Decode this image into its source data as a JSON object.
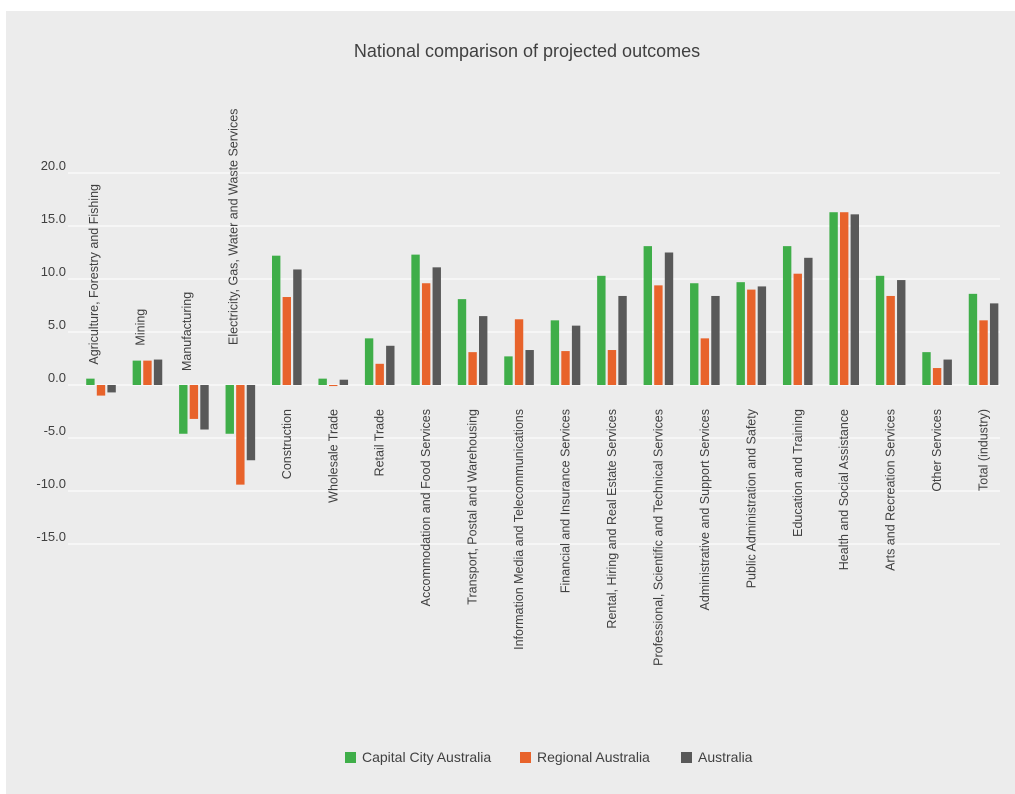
{
  "chart_data": {
    "type": "bar",
    "title": "National comparison of projected outcomes",
    "xlabel": "",
    "ylabel": "",
    "ylim": [
      -15,
      20
    ],
    "yticks": [
      "20.0",
      "15.0",
      "10.0",
      "5.0",
      "0.0",
      "-5.0",
      "-10.0",
      "-15.0"
    ],
    "grid": true,
    "legend_position": "bottom",
    "categories": [
      "Agriculture, Forestry and Fishing",
      "Mining",
      "Manufacturing",
      "Electricity, Gas, Water and Waste Services",
      "Construction",
      "Wholesale Trade",
      "Retail Trade",
      "Accommodation and Food Services",
      "Transport, Postal and Warehousing",
      "Information Media and Telecommunications",
      "Financial and Insurance Services",
      "Rental, Hiring and Real Estate Services",
      "Professional, Scientific and Technical Services",
      "Administrative and Support Services",
      "Public Administration and Safety",
      "Education and Training",
      "Health and Social Assistance",
      "Arts and Recreation Services",
      "Other Services",
      "Total (industry)"
    ],
    "series": [
      {
        "name": "Capital City Australia",
        "color": "#3fae49",
        "values": [
          0.6,
          2.3,
          -4.6,
          -4.6,
          12.2,
          0.6,
          4.4,
          12.3,
          8.1,
          2.7,
          6.1,
          10.3,
          13.1,
          9.6,
          9.7,
          13.1,
          16.3,
          10.3,
          3.1,
          8.6
        ]
      },
      {
        "name": "Regional Australia",
        "color": "#e8632b",
        "values": [
          -1.0,
          2.3,
          -3.2,
          -9.4,
          8.3,
          -0.1,
          2.0,
          9.6,
          3.1,
          6.2,
          3.2,
          3.3,
          9.4,
          4.4,
          9.0,
          10.5,
          16.3,
          8.4,
          1.6,
          6.1
        ]
      },
      {
        "name": "Australia",
        "color": "#595959",
        "values": [
          -0.7,
          2.4,
          -4.2,
          -7.1,
          10.9,
          0.5,
          3.7,
          11.1,
          6.5,
          3.3,
          5.6,
          8.4,
          12.5,
          8.4,
          9.3,
          12.0,
          16.1,
          9.9,
          2.4,
          7.7
        ]
      }
    ]
  }
}
